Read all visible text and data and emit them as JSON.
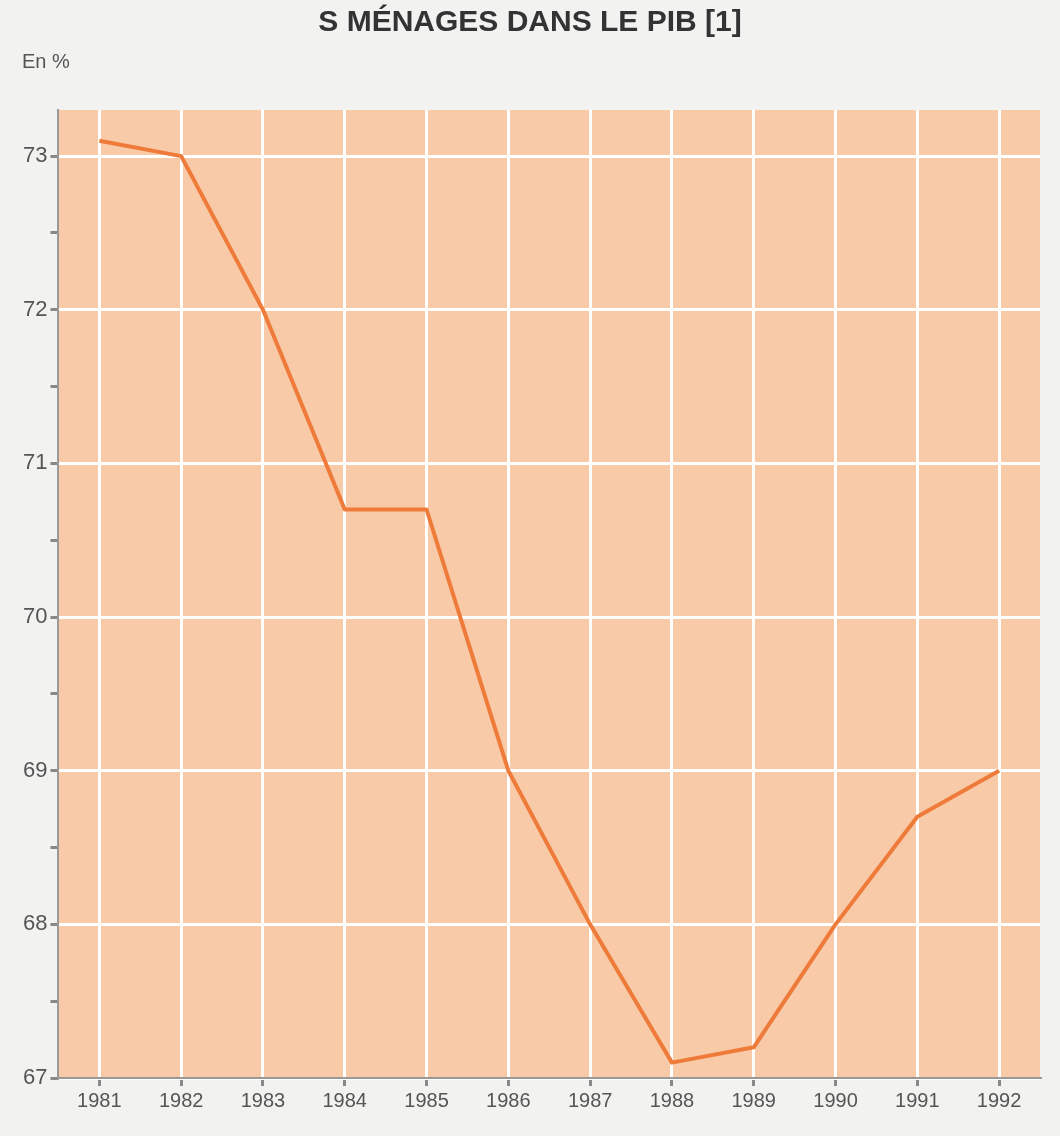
{
  "chart_data": {
    "type": "line",
    "title": "S MÉNAGES DANS LE PIB [1]",
    "ylabel": "En %",
    "categories": [
      "1981",
      "1982",
      "1983",
      "1984",
      "1985",
      "1986",
      "1987",
      "1988",
      "1989",
      "1990",
      "1991",
      "1992"
    ],
    "series": [
      {
        "color": "#ee7b3a",
        "values": [
          73.1,
          73.0,
          72.0,
          70.7,
          70.7,
          69.0,
          68.0,
          67.1,
          67.2,
          68.0,
          68.7,
          69.0
        ]
      }
    ],
    "ylim": [
      67,
      73.3
    ],
    "yticks": [
      67,
      {
        "value": 67.5,
        "label": null
      },
      68,
      {
        "value": 68.5,
        "label": null
      },
      69,
      {
        "value": 69.5,
        "label": null
      },
      70,
      {
        "value": 70.5,
        "label": null
      },
      71,
      {
        "value": 71.5,
        "label": null
      },
      72,
      {
        "value": 72.5,
        "label": null
      },
      73
    ],
    "grid": true,
    "legend": false,
    "marker": "none",
    "line_style": "solid"
  }
}
